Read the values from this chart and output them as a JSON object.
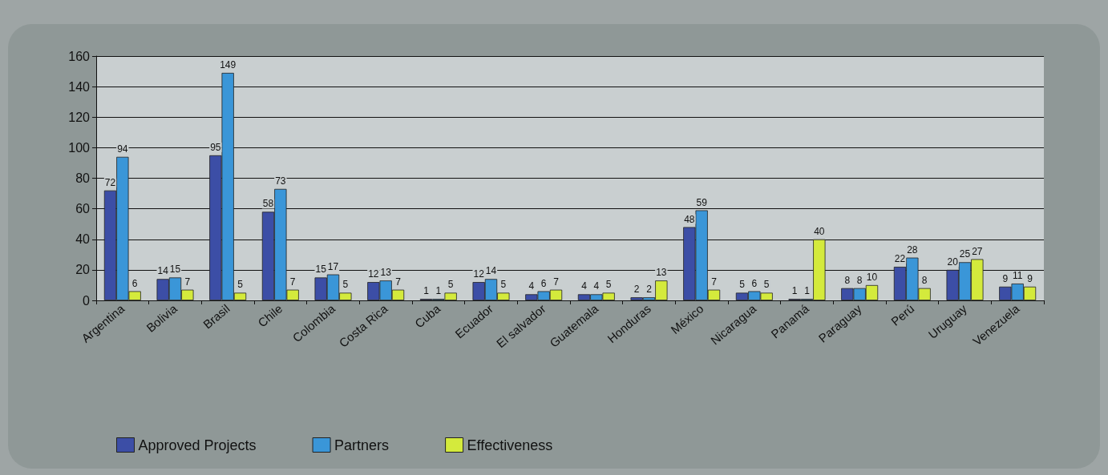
{
  "chart_data": {
    "type": "bar",
    "categories": [
      "Argentina",
      "Bolivia",
      "Brasil",
      "Chile",
      "Colombia",
      "Costa Rica",
      "Cuba",
      "Ecuador",
      "El salvador",
      "Guatemala",
      "Honduras",
      "México",
      "Nicaragua",
      "Panamá",
      "Paraguay",
      "Perú",
      "Uruguay",
      "Venezuela"
    ],
    "series": [
      {
        "name": "Approved Projects",
        "color": "#3c4ea6",
        "values": [
          72,
          14,
          95,
          58,
          15,
          12,
          1,
          12,
          4,
          4,
          2,
          48,
          5,
          1,
          8,
          22,
          20,
          9
        ]
      },
      {
        "name": "Partners",
        "color": "#3a96d8",
        "values": [
          94,
          15,
          149,
          73,
          17,
          13,
          1,
          14,
          6,
          4,
          2,
          59,
          6,
          1,
          8,
          28,
          25,
          11
        ]
      },
      {
        "name": "Effectiveness",
        "color": "#d4ea3c",
        "values": [
          6,
          7,
          5,
          7,
          5,
          7,
          5,
          5,
          7,
          5,
          13,
          7,
          5,
          40,
          10,
          8,
          27,
          9
        ]
      }
    ],
    "ylim": [
      0,
      160
    ],
    "yticks": [
      0,
      20,
      40,
      60,
      80,
      100,
      120,
      140,
      160
    ],
    "grid": "y",
    "legend": "bottom left",
    "data_labels": true
  }
}
